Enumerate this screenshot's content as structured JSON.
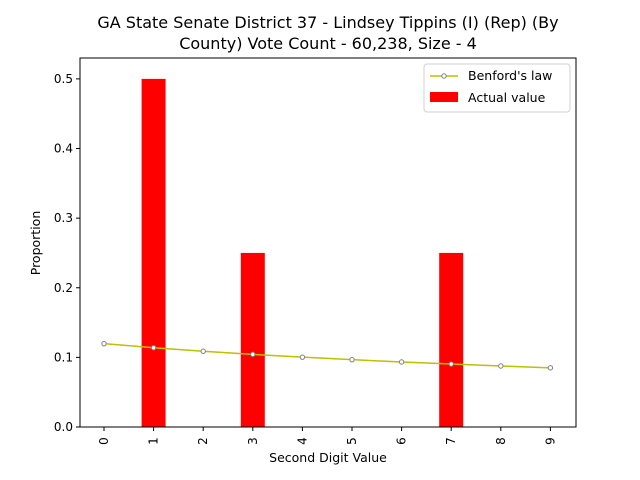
{
  "chart_data": {
    "type": "bar",
    "title_lines": [
      "GA State Senate District 37 - Lindsey Tippins (I) (Rep) (By",
      "County) Vote Count - 60,238, Size - 4"
    ],
    "xlabel": "Second Digit Value",
    "ylabel": "Proportion",
    "categories": [
      "0",
      "1",
      "2",
      "3",
      "4",
      "5",
      "6",
      "7",
      "8",
      "9"
    ],
    "ylim": [
      0,
      0.53
    ],
    "yticks": [
      "0.0",
      "0.1",
      "0.2",
      "0.3",
      "0.4",
      "0.5"
    ],
    "grid": false,
    "legend_position": "top-right",
    "series": [
      {
        "name": "Benford's law",
        "kind": "line",
        "color": "#bfbf00",
        "values": [
          0.1197,
          0.1139,
          0.1088,
          0.1043,
          0.1003,
          0.0967,
          0.0934,
          0.0904,
          0.0876,
          0.085
        ]
      },
      {
        "name": "Actual value",
        "kind": "bar",
        "color": "#ff0000",
        "values": [
          0,
          0.5,
          0,
          0.25,
          0,
          0,
          0,
          0.25,
          0,
          0
        ]
      }
    ]
  }
}
